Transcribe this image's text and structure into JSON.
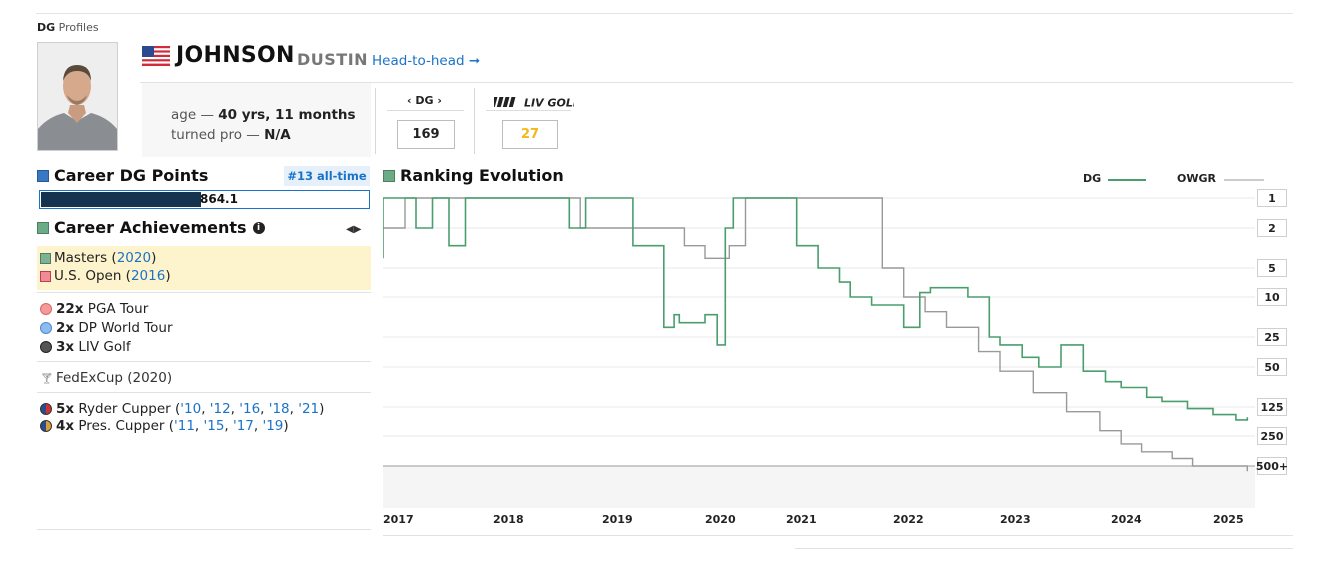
{
  "header": {
    "brand_prefix": "DG",
    "brand_suffix": "Profiles",
    "last_name": "JOHNSON",
    "first_name": "DUSTIN",
    "h2h_link": "Head-to-head ➞"
  },
  "player": {
    "age_label": "age — ",
    "age_value": "40 yrs, 11 months",
    "turned_pro_label": "turned pro — ",
    "turned_pro_value": "N/A",
    "flag": "us-flag-icon"
  },
  "rankings": {
    "dg_label": "‹ DG ›",
    "dg_value": "169",
    "liv_label": "LIV GOLF",
    "liv_value": "27",
    "liv_value_color": "#f2b818"
  },
  "career_points": {
    "title": "Career DG Points",
    "badge": "#13 all-time",
    "value": "864.1",
    "bar_fill_fraction": 0.49
  },
  "achievements": {
    "title": "Career Achievements",
    "info_icon": "info-icon",
    "majors": [
      {
        "name": "Masters",
        "years": [
          "2020"
        ],
        "color": "#5d9c7c"
      },
      {
        "name": "U.S. Open",
        "years": [
          "2016"
        ],
        "color": "#e05565"
      }
    ],
    "wins": [
      {
        "count": "22x",
        "tour": "PGA Tour",
        "color": "#f28b8b"
      },
      {
        "count": "2x",
        "tour": "DP World Tour",
        "color": "#7fb0e8"
      },
      {
        "count": "3x",
        "tour": "LIV Golf",
        "color": "#444444"
      }
    ],
    "fedex": "FedExCup (2020)",
    "cups": [
      {
        "count": "5x",
        "label": "Ryder Cupper",
        "years": [
          "'10",
          "'12",
          "'16",
          "'18",
          "'21"
        ]
      },
      {
        "count": "4x",
        "label": "Pres. Cupper",
        "years": [
          "'11",
          "'15",
          "'17",
          "'19"
        ]
      }
    ]
  },
  "ranking_evolution": {
    "title": "Ranking Evolution",
    "legend": [
      {
        "name": "DG",
        "color": "#4a9e6e"
      },
      {
        "name": "OWGR",
        "color": "#bbbbbb"
      }
    ]
  },
  "chart_data": {
    "type": "line",
    "title": "Ranking Evolution",
    "x_tick_labels": [
      "2017",
      "2018",
      "2019",
      "2020",
      "2021",
      "2022",
      "2023",
      "2024",
      "2025"
    ],
    "y_tick_labels": [
      "1",
      "2",
      "5",
      "10",
      "25",
      "50",
      "125",
      "250",
      "500+"
    ],
    "y_scale": "log, inverted (rank 1 at top)",
    "grid": true,
    "legend_position": "top-right",
    "series": [
      {
        "name": "DG",
        "color": "#4a9e6e",
        "x": [
          2016.9,
          2017.0,
          2017.3,
          2017.45,
          2017.6,
          2017.75,
          2017.85,
          2018.0,
          2018.2,
          2018.4,
          2018.5,
          2018.7,
          2018.85,
          2019.0,
          2019.2,
          2019.3,
          2019.6,
          2019.7,
          2019.75,
          2020.0,
          2020.15,
          2020.25,
          2020.35,
          2020.5,
          2020.6,
          2020.75,
          2020.9,
          2021.1,
          2021.3,
          2021.5,
          2021.6,
          2021.8,
          2022.0,
          2022.1,
          2022.25,
          2022.35,
          2022.5,
          2022.7,
          2022.9,
          2023.0,
          2023.2,
          2023.35,
          2023.55,
          2023.75,
          2023.95,
          2024.1,
          2024.35,
          2024.5,
          2024.75,
          2025.0,
          2025.2,
          2025.3
        ],
        "y": [
          4,
          1,
          2,
          1,
          3,
          1,
          1,
          1,
          1,
          1,
          1,
          2,
          1,
          1,
          1,
          3,
          20,
          15,
          18,
          15,
          30,
          2,
          1,
          1,
          1,
          1,
          1,
          3,
          5,
          7,
          10,
          12,
          12,
          20,
          9,
          8,
          8,
          10,
          25,
          30,
          40,
          50,
          30,
          55,
          70,
          80,
          100,
          110,
          130,
          150,
          170,
          160
        ]
      },
      {
        "name": "OWGR",
        "color": "#999999",
        "x": [
          2016.9,
          2017.0,
          2017.2,
          2017.5,
          2017.8,
          2018.0,
          2018.3,
          2018.6,
          2018.8,
          2019.0,
          2019.2,
          2019.5,
          2019.8,
          2020.0,
          2020.3,
          2020.5,
          2020.8,
          2021.0,
          2021.3,
          2021.6,
          2021.9,
          2022.1,
          2022.3,
          2022.5,
          2022.8,
          2023.0,
          2023.3,
          2023.6,
          2023.9,
          2024.1,
          2024.3,
          2024.6,
          2024.8,
          2025.3
        ],
        "y": [
          2,
          2,
          1,
          1,
          1,
          1,
          1,
          1,
          2,
          2,
          2,
          2,
          3,
          4,
          3,
          1,
          1,
          1,
          1,
          1,
          5,
          10,
          14,
          20,
          35,
          55,
          90,
          140,
          220,
          300,
          360,
          420,
          500,
          600
        ]
      }
    ]
  }
}
